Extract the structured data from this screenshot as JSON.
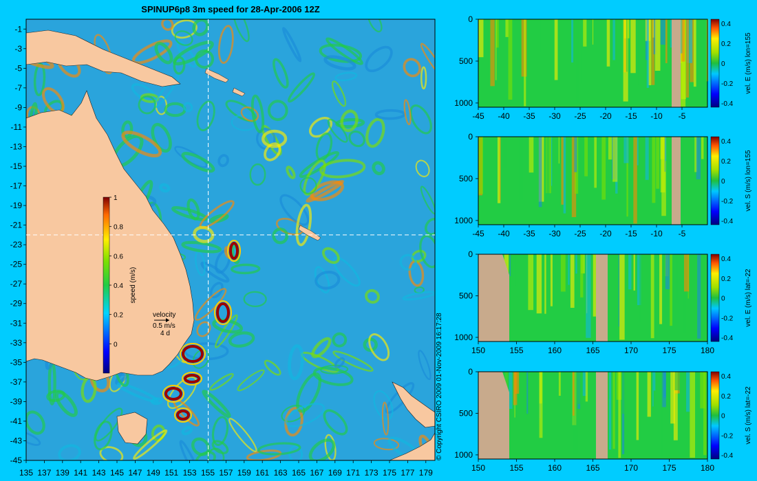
{
  "page": {
    "title": "SPINUP6p8 3m speed for 28-Apr-2006 12Z",
    "copyright": "© Copyright CSIRO 2009   01-Nov-2009 16:17:28",
    "background": "#00ccff",
    "land_color": "#f8c8a0",
    "section_land_color": "#c8aa8c"
  },
  "chart_data": [
    {
      "type": "heatmap",
      "title": "SPINUP6p8 3m speed for 28-Apr-2006 12Z",
      "x_ticks": [
        "135",
        "137",
        "139",
        "141",
        "143",
        "145",
        "147",
        "149",
        "151",
        "153",
        "155",
        "157",
        "159",
        "161",
        "163",
        "165",
        "167",
        "169",
        "171",
        "173",
        "175",
        "177",
        "179"
      ],
      "y_ticks": [
        "-1",
        "-3",
        "-5",
        "-7",
        "-9",
        "-11",
        "-13",
        "-15",
        "-17",
        "-19",
        "-21",
        "-23",
        "-25",
        "-27",
        "-29",
        "-31",
        "-33",
        "-35",
        "-37",
        "-39",
        "-41",
        "-43",
        "-45"
      ],
      "xlim": [
        135,
        180
      ],
      "ylim": [
        -45,
        0
      ],
      "section_lines": {
        "lon": 155,
        "lat": -22
      },
      "colorbar": {
        "label": "speed (m/s)",
        "ticks": [
          "1",
          "0.8",
          "0.6",
          "0.4",
          "0.2",
          "0"
        ],
        "range": [
          -0.2,
          1
        ]
      },
      "velocity_key": {
        "title": "velocity",
        "speed": "0.5 m/s",
        "days": "4 d"
      }
    },
    {
      "type": "heatmap",
      "x_ticks": [
        "-45",
        "-40",
        "-35",
        "-30",
        "-25",
        "-20",
        "-15",
        "-10",
        "-5"
      ],
      "y_ticks": [
        "0",
        "500",
        "1000"
      ],
      "xlim": [
        -45,
        0
      ],
      "ylim": [
        1050,
        0
      ],
      "colorbar": {
        "label": "vel. E (m/s) lon=155",
        "ticks": [
          "0.4",
          "0.2",
          "0",
          "-0.2",
          "-0.4"
        ]
      }
    },
    {
      "type": "heatmap",
      "x_ticks": [
        "-45",
        "-40",
        "-35",
        "-30",
        "-25",
        "-20",
        "-15",
        "-10",
        "-5"
      ],
      "y_ticks": [
        "0",
        "500",
        "1000"
      ],
      "xlim": [
        -45,
        0
      ],
      "ylim": [
        1050,
        0
      ],
      "colorbar": {
        "label": "vel. S (m/s) lon=155",
        "ticks": [
          "0.4",
          "0.2",
          "0",
          "-0.2",
          "-0.4"
        ]
      }
    },
    {
      "type": "heatmap",
      "x_ticks": [
        "150",
        "155",
        "160",
        "165",
        "170",
        "175",
        "180"
      ],
      "y_ticks": [
        "0",
        "500",
        "1000"
      ],
      "xlim": [
        150,
        180
      ],
      "ylim": [
        1050,
        0
      ],
      "colorbar": {
        "label": "vel. E (m/s) lat=-22",
        "ticks": [
          "0.4",
          "0.2",
          "0",
          "-0.2",
          "-0.4"
        ]
      }
    },
    {
      "type": "heatmap",
      "x_ticks": [
        "150",
        "155",
        "160",
        "165",
        "170",
        "175",
        "180"
      ],
      "y_ticks": [
        "0",
        "500",
        "1000"
      ],
      "xlim": [
        150,
        180
      ],
      "ylim": [
        1050,
        0
      ],
      "colorbar": {
        "label": "vel. S (m/s) lat=-22",
        "ticks": [
          "0.4",
          "0.2",
          "0",
          "-0.2",
          "-0.4"
        ]
      }
    }
  ]
}
